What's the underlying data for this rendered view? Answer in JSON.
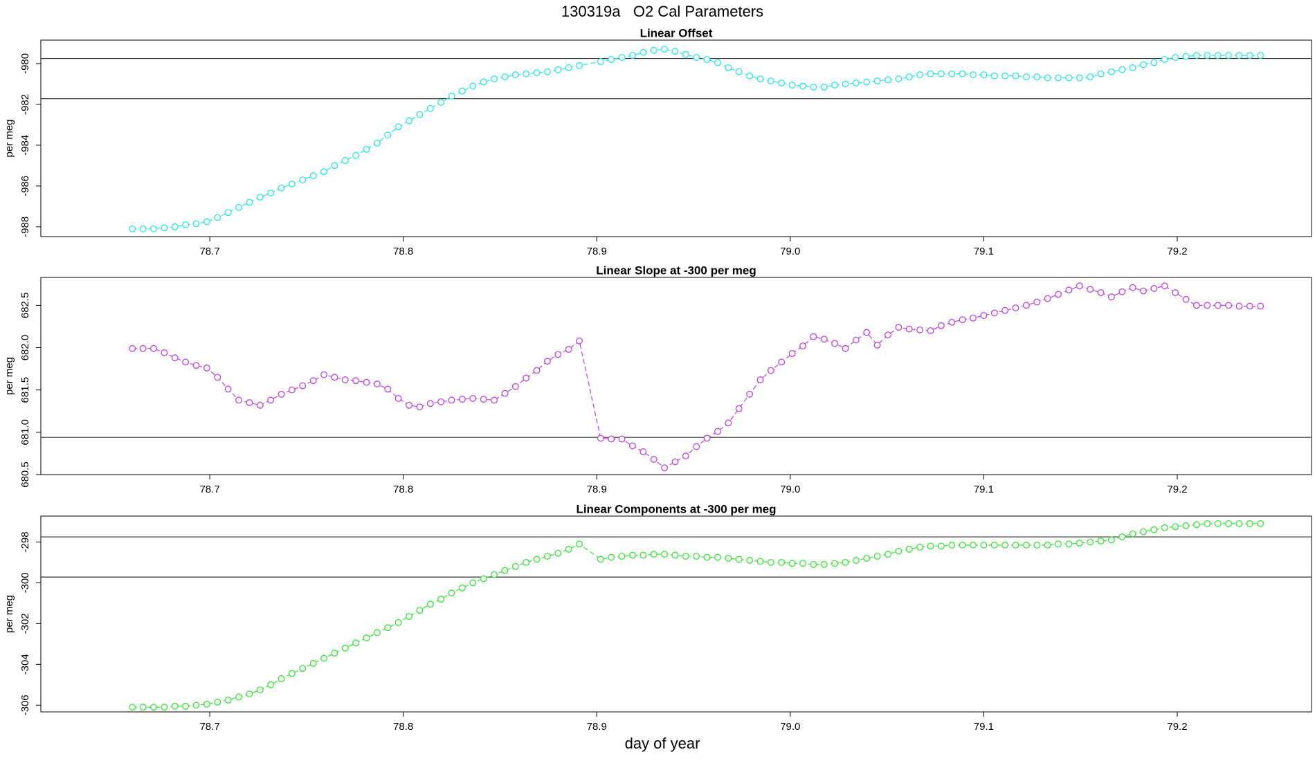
{
  "title": "130319a   O2 Cal Parameters",
  "xlabel": "day of year",
  "chart_data": [
    {
      "type": "line",
      "title": "Linear Offset",
      "ylabel": "per meg",
      "color": "#22e8e8",
      "xlim": [
        78.6127,
        79.2694
      ],
      "xticks": [
        78.7,
        78.8,
        78.9,
        {
          "value": 79,
          "label": "79.0"
        },
        79.1,
        79.2
      ],
      "ylim": [
        -988.48,
        -978.85
      ],
      "yticks": [
        -988,
        -986,
        -984,
        -982,
        -980
      ],
      "hlines": [
        -979.75,
        -981.72
      ],
      "x": [
        78.66,
        78.6655,
        78.671,
        78.6765,
        78.682,
        78.6875,
        78.693,
        78.6985,
        78.704,
        78.7095,
        78.715,
        78.7205,
        78.726,
        78.7315,
        78.737,
        78.7425,
        78.748,
        78.7535,
        78.759,
        78.7645,
        78.77,
        78.7755,
        78.781,
        78.7865,
        78.792,
        78.7975,
        78.803,
        78.8085,
        78.814,
        78.8195,
        78.825,
        78.8305,
        78.836,
        78.8415,
        78.847,
        78.8525,
        78.858,
        78.8635,
        78.869,
        78.8745,
        78.88,
        78.8855,
        78.891,
        78.902,
        78.9075,
        78.913,
        78.9185,
        78.924,
        78.9295,
        78.935,
        78.9405,
        78.946,
        78.9515,
        78.957,
        78.9625,
        78.968,
        78.9735,
        78.979,
        78.9845,
        78.99,
        78.9955,
        79.001,
        79.0065,
        79.012,
        79.0175,
        79.023,
        79.0285,
        79.034,
        79.0395,
        79.045,
        79.0505,
        79.056,
        79.0615,
        79.067,
        79.0725,
        79.078,
        79.0835,
        79.089,
        79.0945,
        79.1,
        79.1055,
        79.111,
        79.1165,
        79.122,
        79.1275,
        79.133,
        79.1385,
        79.144,
        79.1495,
        79.155,
        79.1605,
        79.166,
        79.1715,
        79.177,
        79.1825,
        79.188,
        79.1935,
        79.199,
        79.2045,
        79.21,
        79.2155,
        79.221,
        79.2265,
        79.232,
        79.2375,
        79.243
      ],
      "values": [
        -988.1,
        -988.1,
        -988.1,
        -988.05,
        -988.0,
        -987.9,
        -987.85,
        -987.75,
        -987.55,
        -987.3,
        -987.05,
        -986.8,
        -986.55,
        -986.35,
        -986.1,
        -985.9,
        -985.7,
        -985.5,
        -985.3,
        -985.0,
        -984.75,
        -984.5,
        -984.2,
        -983.9,
        -983.5,
        -983.1,
        -982.8,
        -982.5,
        -982.2,
        -981.9,
        -981.6,
        -981.35,
        -981.1,
        -980.9,
        -980.75,
        -980.65,
        -980.55,
        -980.5,
        -980.45,
        -980.4,
        -980.3,
        -980.2,
        -980.1,
        -979.9,
        -979.8,
        -979.7,
        -979.6,
        -979.45,
        -979.35,
        -979.3,
        -979.4,
        -979.55,
        -979.7,
        -979.8,
        -979.95,
        -980.2,
        -980.4,
        -980.6,
        -980.75,
        -980.85,
        -980.95,
        -981.05,
        -981.1,
        -981.15,
        -981.15,
        -981.05,
        -981.0,
        -980.95,
        -980.9,
        -980.85,
        -980.8,
        -980.75,
        -980.65,
        -980.55,
        -980.5,
        -980.5,
        -980.5,
        -980.5,
        -980.55,
        -980.55,
        -980.6,
        -980.6,
        -980.6,
        -980.65,
        -980.65,
        -980.7,
        -980.7,
        -980.7,
        -980.7,
        -980.65,
        -980.5,
        -980.4,
        -980.3,
        -980.2,
        -980.05,
        -979.95,
        -979.8,
        -979.7,
        -979.65,
        -979.6,
        -979.6,
        -979.6,
        -979.6,
        -979.6,
        -979.6,
        -979.6
      ]
    },
    {
      "type": "line",
      "title": "Linear Slope at -300 per meg",
      "ylabel": "per meg",
      "color": "#c040e8",
      "xlim": [
        78.6127,
        79.2694
      ],
      "xticks": [
        78.7,
        78.8,
        78.9,
        {
          "value": 79,
          "label": "79.0"
        },
        79.1,
        79.2
      ],
      "ylim": [
        680.5,
        682.83
      ],
      "yticks": [
        680.5,
        {
          "value": 681,
          "label": "681.0"
        },
        681.5,
        {
          "value": 682,
          "label": "682.0"
        },
        682.5
      ],
      "hlines": [
        680.94
      ],
      "x": [
        78.66,
        78.6655,
        78.671,
        78.6765,
        78.682,
        78.6875,
        78.693,
        78.6985,
        78.704,
        78.7095,
        78.715,
        78.7205,
        78.726,
        78.7315,
        78.737,
        78.7425,
        78.748,
        78.7535,
        78.759,
        78.7645,
        78.77,
        78.7755,
        78.781,
        78.7865,
        78.792,
        78.7975,
        78.803,
        78.8085,
        78.814,
        78.8195,
        78.825,
        78.8305,
        78.836,
        78.8415,
        78.847,
        78.8525,
        78.858,
        78.8635,
        78.869,
        78.8745,
        78.88,
        78.8855,
        78.891,
        78.902,
        78.9075,
        78.913,
        78.9185,
        78.924,
        78.9295,
        78.935,
        78.9405,
        78.946,
        78.9515,
        78.957,
        78.9625,
        78.968,
        78.9735,
        78.979,
        78.9845,
        78.99,
        78.9955,
        79.001,
        79.0065,
        79.012,
        79.0175,
        79.023,
        79.0285,
        79.034,
        79.0395,
        79.045,
        79.0505,
        79.056,
        79.0615,
        79.067,
        79.0725,
        79.078,
        79.0835,
        79.089,
        79.0945,
        79.1,
        79.1055,
        79.111,
        79.1165,
        79.122,
        79.1275,
        79.133,
        79.1385,
        79.144,
        79.1495,
        79.155,
        79.1605,
        79.166,
        79.1715,
        79.177,
        79.1825,
        79.188,
        79.1935,
        79.199,
        79.2045,
        79.21,
        79.2155,
        79.221,
        79.2265,
        79.232,
        79.2375,
        79.243
      ],
      "values": [
        681.99,
        681.99,
        681.99,
        681.94,
        681.88,
        681.83,
        681.79,
        681.76,
        681.65,
        681.51,
        681.38,
        681.35,
        681.32,
        681.38,
        681.45,
        681.5,
        681.55,
        681.61,
        681.68,
        681.65,
        681.62,
        681.61,
        681.59,
        681.57,
        681.51,
        681.4,
        681.32,
        681.3,
        681.34,
        681.36,
        681.38,
        681.39,
        681.4,
        681.39,
        681.38,
        681.46,
        681.54,
        681.64,
        681.73,
        681.84,
        681.92,
        681.98,
        682.08,
        680.93,
        680.92,
        680.92,
        680.84,
        680.77,
        680.68,
        680.58,
        680.65,
        680.72,
        680.83,
        680.93,
        681.01,
        681.11,
        681.28,
        681.45,
        681.62,
        681.73,
        681.83,
        681.93,
        682.02,
        682.13,
        682.1,
        682.05,
        681.99,
        682.09,
        682.18,
        682.03,
        682.15,
        682.24,
        682.22,
        682.21,
        682.2,
        682.26,
        682.3,
        682.33,
        682.35,
        682.38,
        682.41,
        682.44,
        682.47,
        682.5,
        682.54,
        682.58,
        682.63,
        682.68,
        682.73,
        682.69,
        682.65,
        682.6,
        682.66,
        682.71,
        682.67,
        682.7,
        682.73,
        682.65,
        682.57,
        682.5,
        682.5,
        682.5,
        682.5,
        682.49,
        682.49,
        682.49
      ]
    },
    {
      "type": "line",
      "title": "Linear Components at -300 per meg",
      "ylabel": "per meg",
      "color": "#33e833",
      "xlim": [
        78.6127,
        79.2694
      ],
      "xticks": [
        78.7,
        78.8,
        78.9,
        {
          "value": 79,
          "label": "79.0"
        },
        79.1,
        79.2
      ],
      "ylim": [
        -306.33,
        -296.73
      ],
      "yticks": [
        -306,
        -304,
        -302,
        -300,
        -298
      ],
      "hlines": [
        -297.75,
        -299.72
      ],
      "x": [
        78.66,
        78.6655,
        78.671,
        78.6765,
        78.682,
        78.6875,
        78.693,
        78.6985,
        78.704,
        78.7095,
        78.715,
        78.7205,
        78.726,
        78.7315,
        78.737,
        78.7425,
        78.748,
        78.7535,
        78.759,
        78.7645,
        78.77,
        78.7755,
        78.781,
        78.7865,
        78.792,
        78.7975,
        78.803,
        78.8085,
        78.814,
        78.8195,
        78.825,
        78.8305,
        78.836,
        78.8415,
        78.847,
        78.8525,
        78.858,
        78.8635,
        78.869,
        78.8745,
        78.88,
        78.8855,
        78.891,
        78.902,
        78.9075,
        78.913,
        78.9185,
        78.924,
        78.9295,
        78.935,
        78.9405,
        78.946,
        78.9515,
        78.957,
        78.9625,
        78.968,
        78.9735,
        78.979,
        78.9845,
        78.99,
        78.9955,
        79.001,
        79.0065,
        79.012,
        79.0175,
        79.023,
        79.0285,
        79.034,
        79.0395,
        79.045,
        79.0505,
        79.056,
        79.0615,
        79.067,
        79.0725,
        79.078,
        79.0835,
        79.089,
        79.0945,
        79.1,
        79.1055,
        79.111,
        79.1165,
        79.122,
        79.1275,
        79.133,
        79.1385,
        79.144,
        79.1495,
        79.155,
        79.1605,
        79.166,
        79.1715,
        79.177,
        79.1825,
        79.188,
        79.1935,
        79.199,
        79.2045,
        79.21,
        79.2155,
        79.221,
        79.2265,
        79.232,
        79.2375,
        79.243
      ],
      "values": [
        -306.1,
        -306.1,
        -306.1,
        -306.1,
        -306.05,
        -306.05,
        -306.0,
        -305.95,
        -305.85,
        -305.75,
        -305.6,
        -305.45,
        -305.25,
        -305.0,
        -304.7,
        -304.45,
        -304.2,
        -303.95,
        -303.7,
        -303.45,
        -303.2,
        -302.95,
        -302.7,
        -302.45,
        -302.2,
        -301.95,
        -301.65,
        -301.35,
        -301.05,
        -300.8,
        -300.5,
        -300.25,
        -300.0,
        -299.8,
        -299.6,
        -299.4,
        -299.2,
        -299.0,
        -298.85,
        -298.7,
        -298.55,
        -298.35,
        -298.1,
        -298.85,
        -298.75,
        -298.7,
        -298.65,
        -298.65,
        -298.6,
        -298.6,
        -298.65,
        -298.7,
        -298.7,
        -298.75,
        -298.75,
        -298.8,
        -298.85,
        -298.9,
        -298.95,
        -299.0,
        -299.0,
        -299.05,
        -299.05,
        -299.1,
        -299.1,
        -299.05,
        -299.0,
        -298.9,
        -298.8,
        -298.7,
        -298.6,
        -298.45,
        -298.35,
        -298.25,
        -298.2,
        -298.2,
        -298.15,
        -298.15,
        -298.15,
        -298.15,
        -298.15,
        -298.15,
        -298.15,
        -298.15,
        -298.15,
        -298.15,
        -298.1,
        -298.1,
        -298.05,
        -298.0,
        -297.95,
        -297.9,
        -297.75,
        -297.6,
        -297.5,
        -297.4,
        -297.3,
        -297.25,
        -297.2,
        -297.15,
        -297.1,
        -297.1,
        -297.1,
        -297.1,
        -297.1,
        -297.1
      ]
    }
  ]
}
